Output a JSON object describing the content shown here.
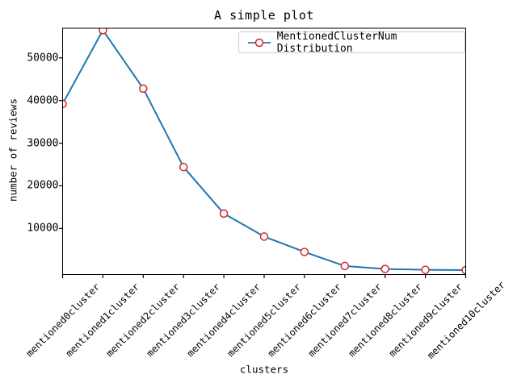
{
  "figure": {
    "title": "A simple plot",
    "xlabel": "clusters",
    "ylabel": "number of reviews",
    "legend_label": "MentionedClusterNum Distribution"
  },
  "colors": {
    "background": "#ffffff",
    "line": "#1f77b4",
    "marker_edge": "#d62728",
    "marker_face": "#ffffff",
    "axis": "#000000",
    "legend_border": "#cccccc",
    "text": "#000000"
  },
  "chart_data": {
    "type": "line",
    "title": "A simple plot",
    "xlabel": "clusters",
    "ylabel": "number of reviews",
    "categories": [
      "mentioned0cluster",
      "mentioned1cluster",
      "mentioned2cluster",
      "mentioned3cluster",
      "mentioned4cluster",
      "mentioned5cluster",
      "mentioned6cluster",
      "mentioned7cluster",
      "mentioned8cluster",
      "mentioned9cluster",
      "mentioned10cluster"
    ],
    "series": [
      {
        "name": "MentionedClusterNum Distribution",
        "values": [
          39200,
          56500,
          42800,
          24400,
          13500,
          8100,
          4500,
          1200,
          500,
          300,
          250
        ]
      }
    ],
    "yticks": [
      10000,
      20000,
      30000,
      40000,
      50000
    ],
    "ylim": [
      -800,
      56950
    ],
    "grid": false,
    "legend_position": "upper right",
    "marker": "o",
    "line_color": "#1f77b4",
    "marker_edge_color": "#d62728",
    "marker_face_color": "#ffffff"
  }
}
